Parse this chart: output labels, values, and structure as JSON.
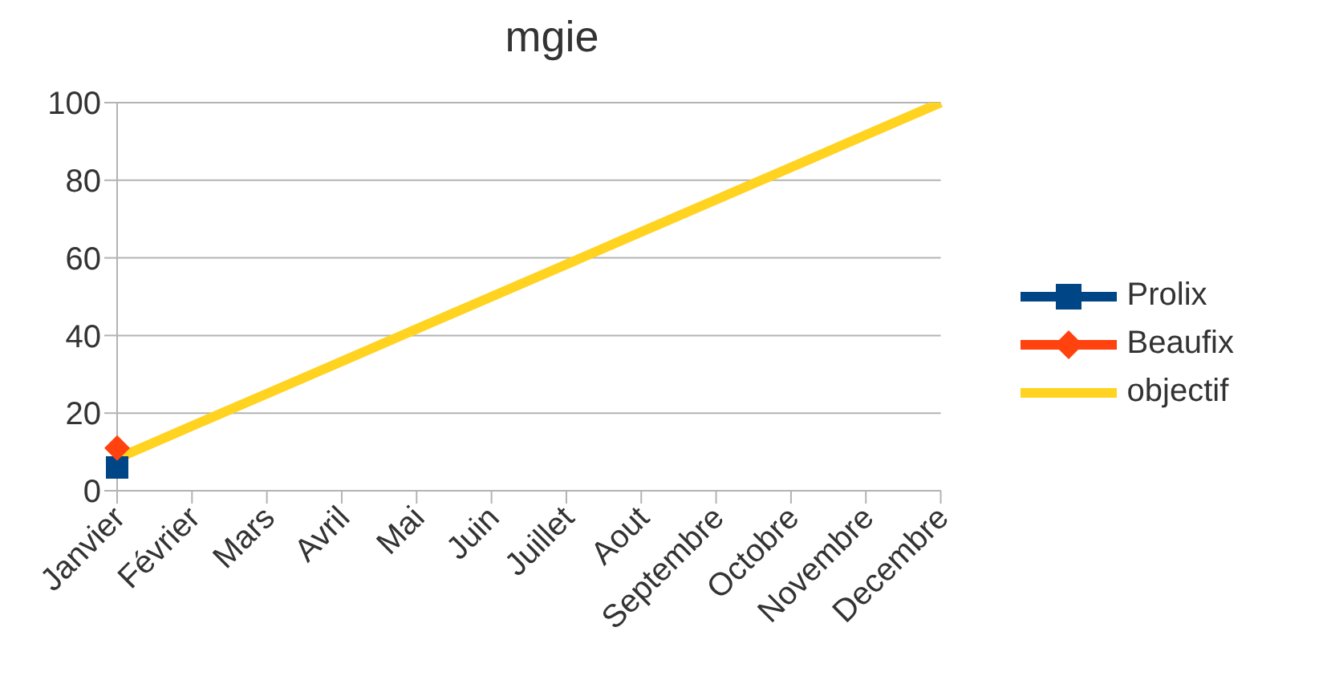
{
  "chart_data": {
    "type": "line",
    "title": "mgie",
    "categories": [
      "Janvier",
      "Février",
      "Mars",
      "Avril",
      "Mai",
      "Juin",
      "Juillet",
      "Aout",
      "Septembre",
      "Octobre",
      "Novembre",
      "Decembre"
    ],
    "series": [
      {
        "name": "Prolix",
        "color": "#004586",
        "marker": "square",
        "values": [
          6,
          null,
          null,
          null,
          null,
          null,
          null,
          null,
          null,
          null,
          null,
          null
        ]
      },
      {
        "name": "Beaufix",
        "color": "#ff420e",
        "marker": "diamond",
        "values": [
          11,
          null,
          null,
          null,
          null,
          null,
          null,
          null,
          null,
          null,
          null,
          null
        ]
      },
      {
        "name": "objectif",
        "color": "#ffd320",
        "marker": "none",
        "values": [
          8.3,
          16.7,
          25,
          33.3,
          41.7,
          50,
          58.3,
          66.7,
          75,
          83.3,
          91.7,
          100
        ]
      }
    ],
    "ylim": [
      0,
      100
    ],
    "yticks": [
      0,
      20,
      40,
      60,
      80,
      100
    ],
    "grid": "y",
    "legend": "right"
  }
}
